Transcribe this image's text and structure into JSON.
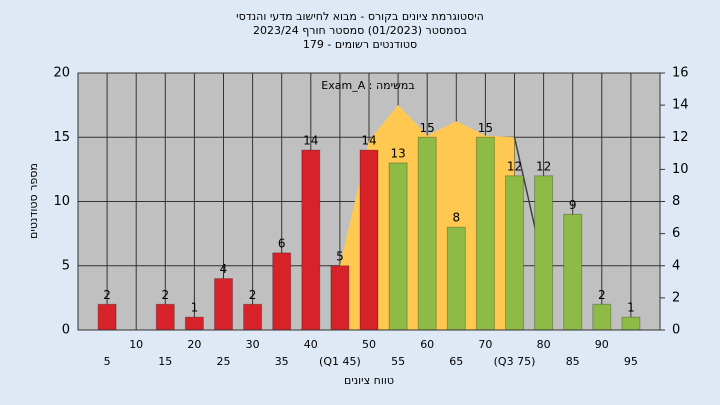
{
  "chart_data": {
    "type": "bar",
    "title": [
      "היסטוגרמת ציונים בקורס - מבוא לחישוב מדעי והנדסי",
      "בסמסטר (01/2023) סמסטר חורף 2023/24",
      "סטודנטים רשומים - 179"
    ],
    "annotation": "במשימה : Exam_A",
    "xlabel": "טווח ציונים",
    "ylabel": "מספר סטודנטים",
    "categories": [
      "5",
      "10",
      "15",
      "20",
      "25",
      "30",
      "35",
      "40",
      "(Q1 45)",
      "50",
      "55",
      "60",
      "65",
      "70",
      "(Q3 75)",
      "80",
      "85",
      "90",
      "95"
    ],
    "values": [
      2,
      null,
      2,
      1,
      4,
      2,
      6,
      14,
      5,
      14,
      13,
      15,
      8,
      15,
      12,
      12,
      9,
      2,
      1
    ],
    "colors": [
      "#d8222a",
      "#d8222a",
      "#d8222a",
      "#d8222a",
      "#d8222a",
      "#d8222a",
      "#d8222a",
      "#d8222a",
      "#d8222a",
      "#d8222a",
      "#8dbb45",
      "#8dbb45",
      "#8dbb45",
      "#8dbb45",
      "#8dbb45",
      "#8dbb45",
      "#8dbb45",
      "#8dbb45",
      "#8dbb45"
    ],
    "xlim": [
      0,
      100
    ],
    "ylim": [
      0,
      20
    ],
    "yticks": [
      0,
      5,
      10,
      15,
      20
    ],
    "y2lim": [
      0,
      16
    ],
    "y2ticks": [
      0,
      2,
      4,
      6,
      8,
      10,
      12,
      14,
      16
    ],
    "grid": true,
    "series": [
      {
        "type": "area",
        "axis": "y2",
        "color": "#ffc850",
        "x": [
          45,
          50,
          55,
          60,
          65,
          70,
          75
        ],
        "values": [
          4,
          11.8,
          14,
          12.1,
          13,
          12.1,
          12
        ]
      },
      {
        "type": "line",
        "axis": "y2",
        "color": "#404040",
        "x": [
          75,
          80
        ],
        "values": [
          12,
          4
        ]
      }
    ]
  }
}
